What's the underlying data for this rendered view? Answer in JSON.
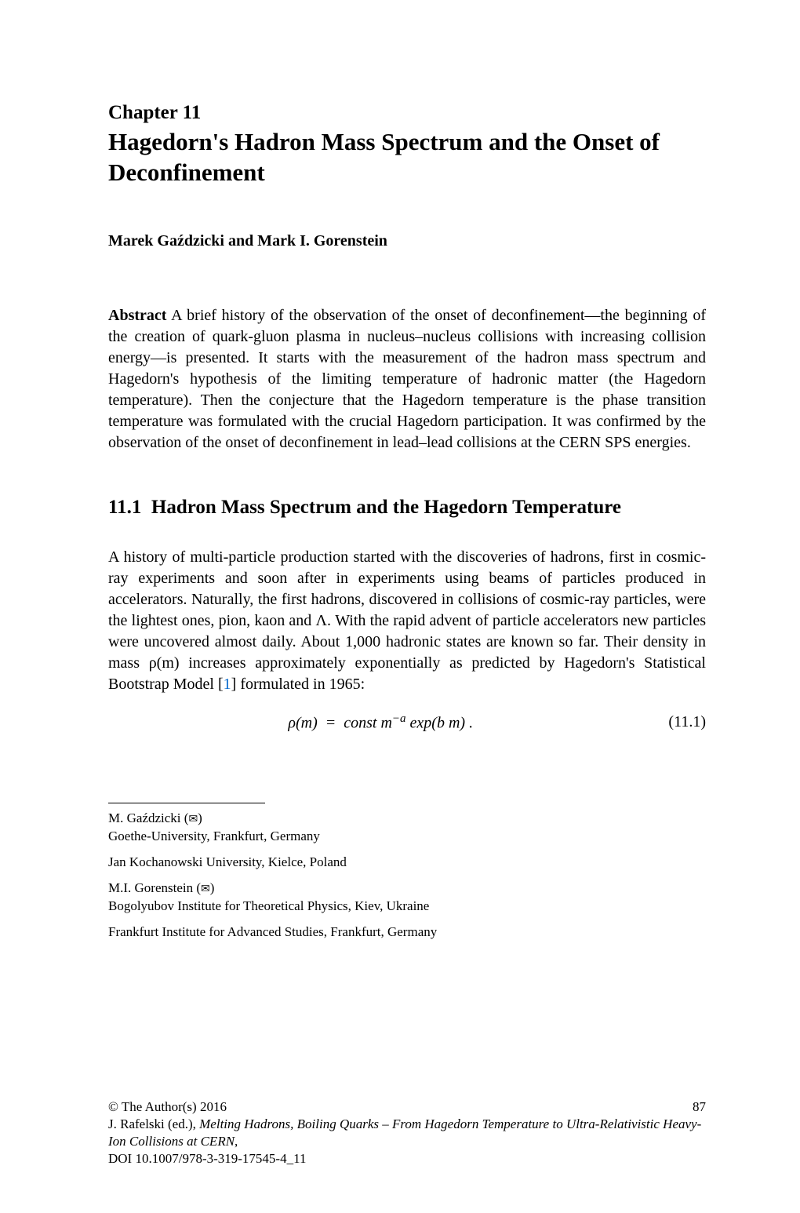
{
  "chapter": {
    "label": "Chapter 11",
    "title": "Hagedorn's Hadron Mass Spectrum and the Onset of Deconfinement"
  },
  "authors": "Marek Gaździcki and Mark I. Gorenstein",
  "abstract": {
    "label": "Abstract",
    "text": " A brief history of the observation of the onset of deconfinement—the beginning of the creation of quark-gluon plasma in nucleus–nucleus collisions with increasing collision energy—is presented. It starts with the measurement of the hadron mass spectrum and Hagedorn's hypothesis of the limiting temperature of hadronic matter (the Hagedorn temperature). Then the conjecture that the Hagedorn temperature is the phase transition temperature was formulated with the crucial Hagedorn participation. It was confirmed by the observation of the onset of deconfinement in lead–lead collisions at the CERN SPS energies."
  },
  "section": {
    "number": "11.1",
    "title": "Hadron Mass Spectrum and the Hagedorn Temperature"
  },
  "body": {
    "p1_part1": "A history of multi-particle production started with the discoveries of hadrons, first in cosmic-ray experiments and soon after in experiments using beams of particles produced in accelerators. Naturally, the first hadrons, discovered in collisions of cosmic-ray particles, were the lightest ones, pion, kaon and Λ. With the rapid advent of particle accelerators new particles were uncovered almost daily. About 1,000 hadronic states are known so far. Their density in mass ρ(m) increases approximately exponentially as predicted by Hagedorn's Statistical Bootstrap Model [",
    "p1_ref": "1",
    "p1_part2": "] formulated in 1965:"
  },
  "equation": {
    "text": "ρ(m)  =  const m⁻ᵃ exp(b m) .",
    "number": "(11.1)"
  },
  "footnotes": {
    "author1": {
      "name": "M. Gaździcki (",
      "affil1": "Goethe-University, Frankfurt, Germany",
      "affil2": "Jan Kochanowski University, Kielce, Poland"
    },
    "author2": {
      "name": "M.I. Gorenstein (",
      "affil1": "Bogolyubov Institute for Theoretical Physics, Kiev, Ukraine",
      "affil2": "Frankfurt Institute for Advanced Studies, Frankfurt, Germany"
    },
    "close_paren": ")"
  },
  "copyright": {
    "line": "© The Author(s) 2016",
    "page_number": "87",
    "editor": "J. Rafelski (ed.), ",
    "book_title": "Melting Hadrons, Boiling Quarks – From Hagedorn Temperature to Ultra-Relativistic Heavy-Ion Collisions at CERN",
    "comma": ",",
    "doi": "DOI 10.1007/978-3-319-17545-4_11"
  }
}
